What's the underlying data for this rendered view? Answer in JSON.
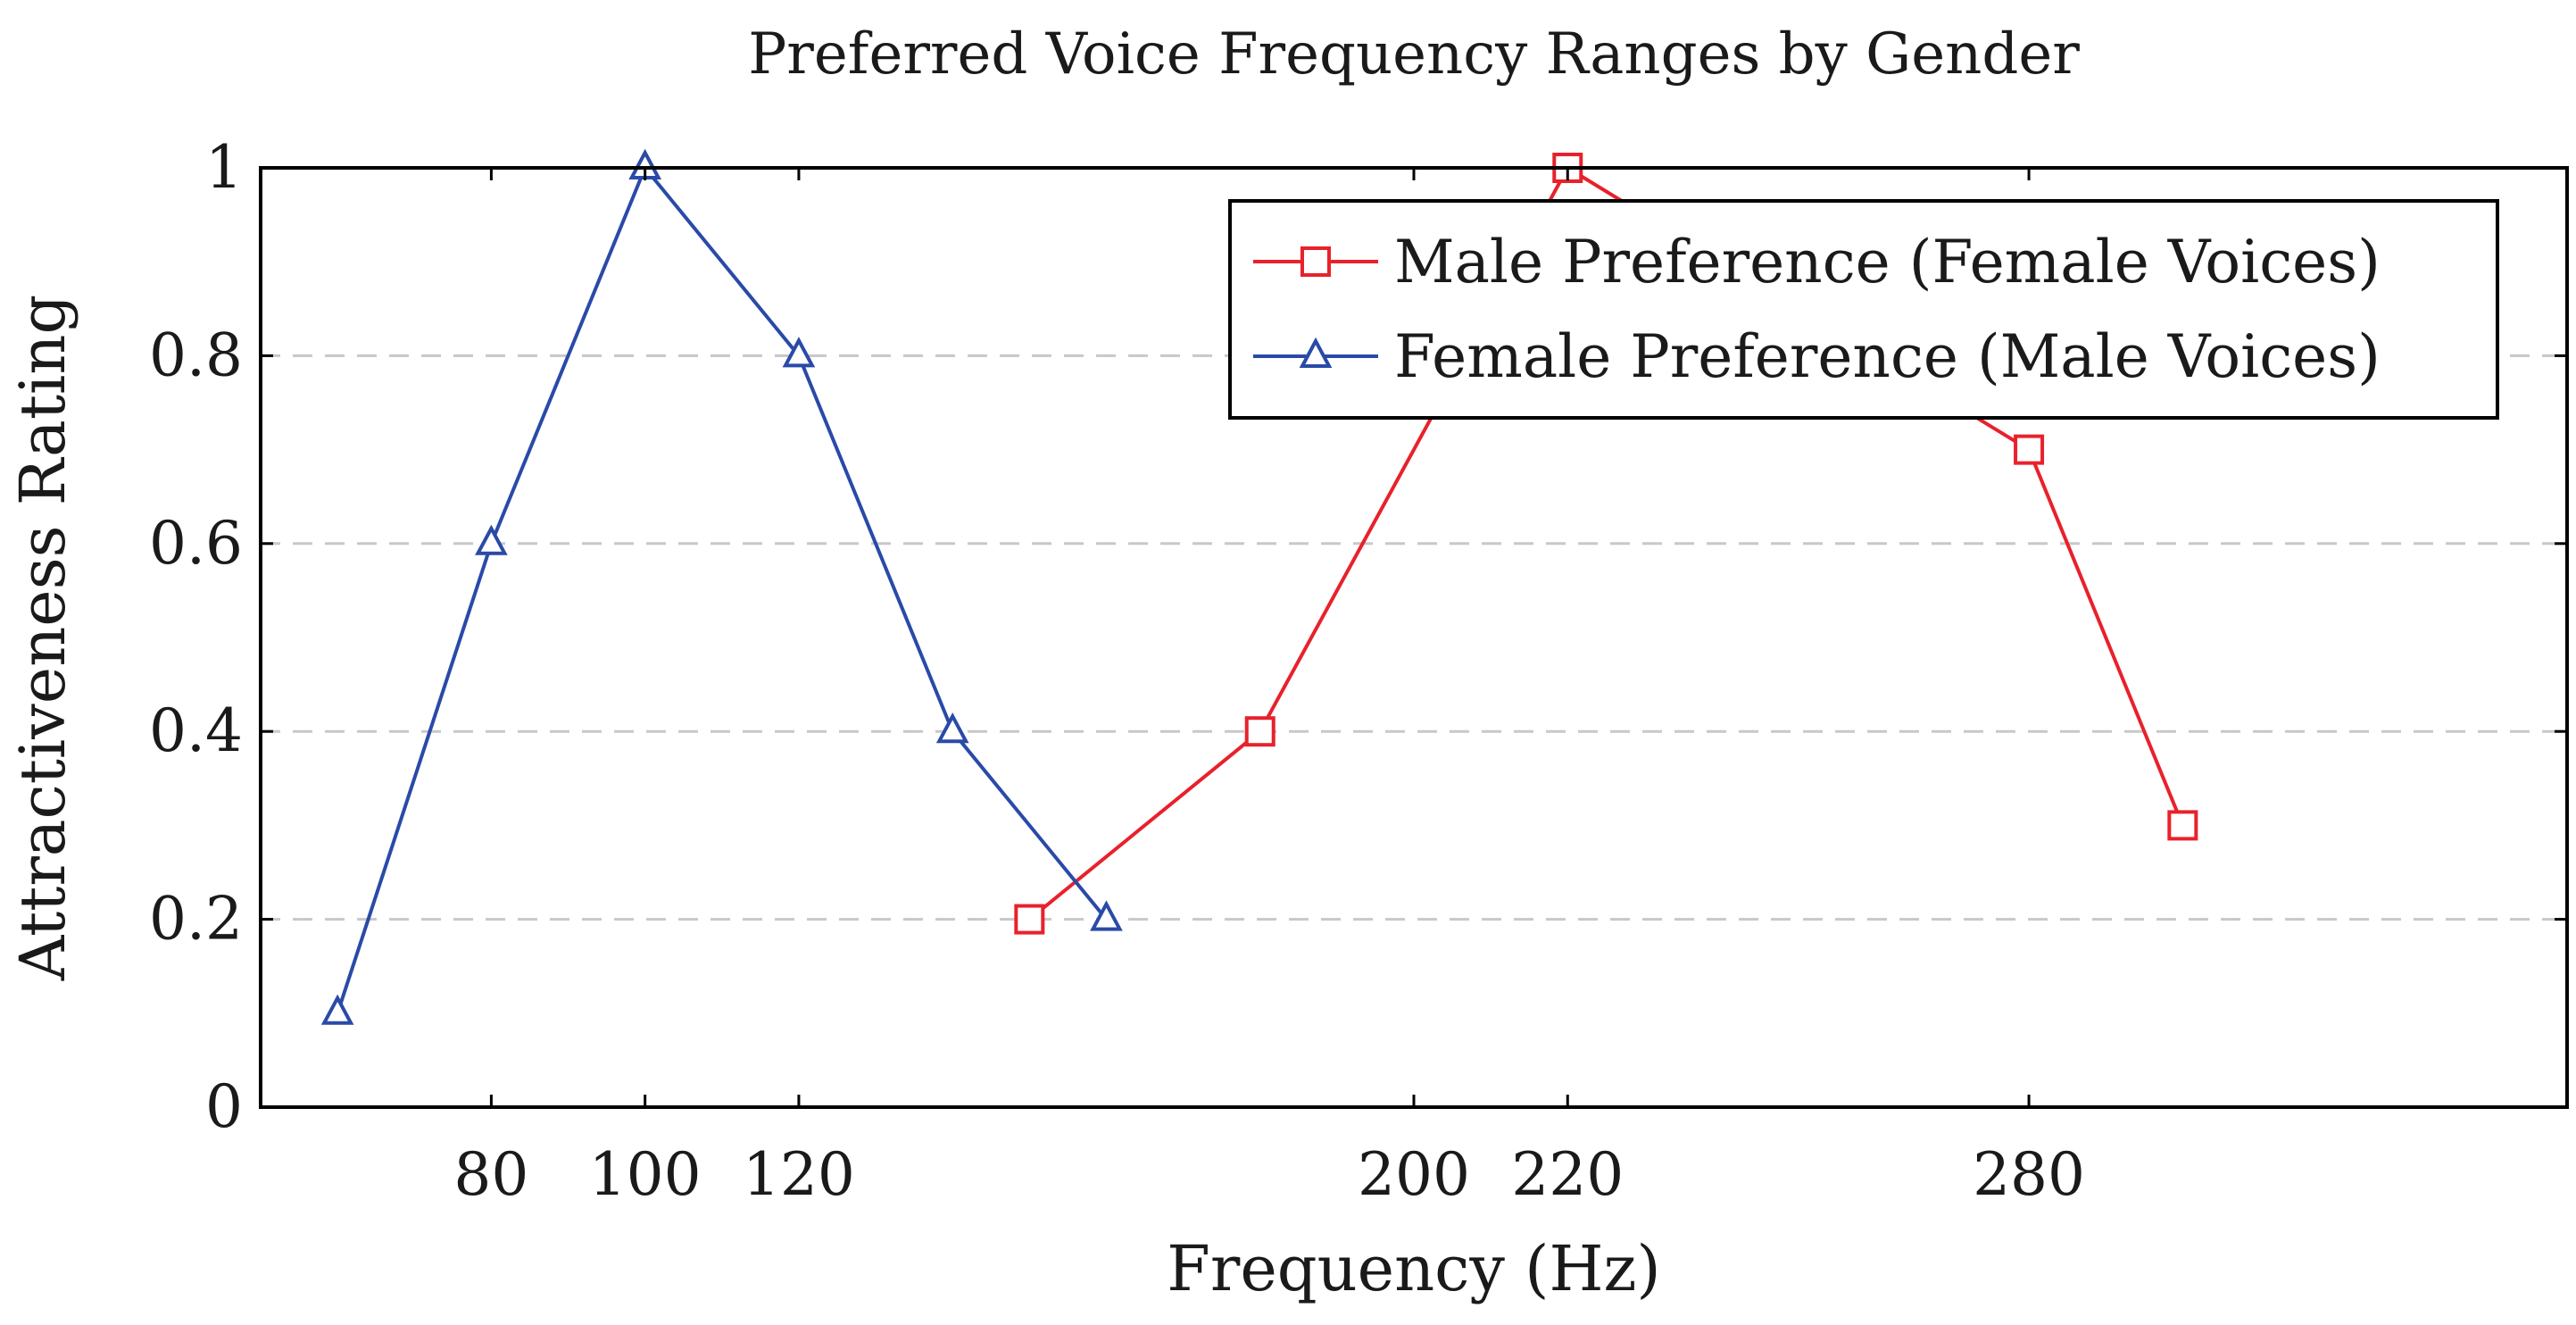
{
  "chart_data": {
    "type": "line",
    "title": "Preferred Voice Frequency Ranges by Gender",
    "xlabel": "Frequency (Hz)",
    "ylabel": "Attractiveness Rating",
    "xlim": [
      50,
      350
    ],
    "ylim": [
      0,
      1
    ],
    "x_ticks": [
      80,
      100,
      120,
      200,
      220,
      280
    ],
    "y_ticks": [
      0,
      0.2,
      0.4,
      0.6,
      0.8,
      1
    ],
    "y_tick_labels": [
      "0",
      "0.2",
      "0.4",
      "0.6",
      "0.8",
      "1"
    ],
    "grid": "horizontal dashed",
    "legend_position": "top-right",
    "series": [
      {
        "name": "Male Preference (Female Voices)",
        "color": "#e8212b",
        "marker": "square",
        "x": [
          150,
          180,
          220,
          280,
          300
        ],
        "y": [
          0.2,
          0.4,
          1.0,
          0.7,
          0.3
        ]
      },
      {
        "name": "Female Preference (Male Voices)",
        "color": "#2a4aa8",
        "marker": "triangle",
        "x": [
          60,
          80,
          100,
          120,
          140,
          160
        ],
        "y": [
          0.1,
          0.6,
          1.0,
          0.8,
          0.4,
          0.2
        ]
      }
    ]
  }
}
